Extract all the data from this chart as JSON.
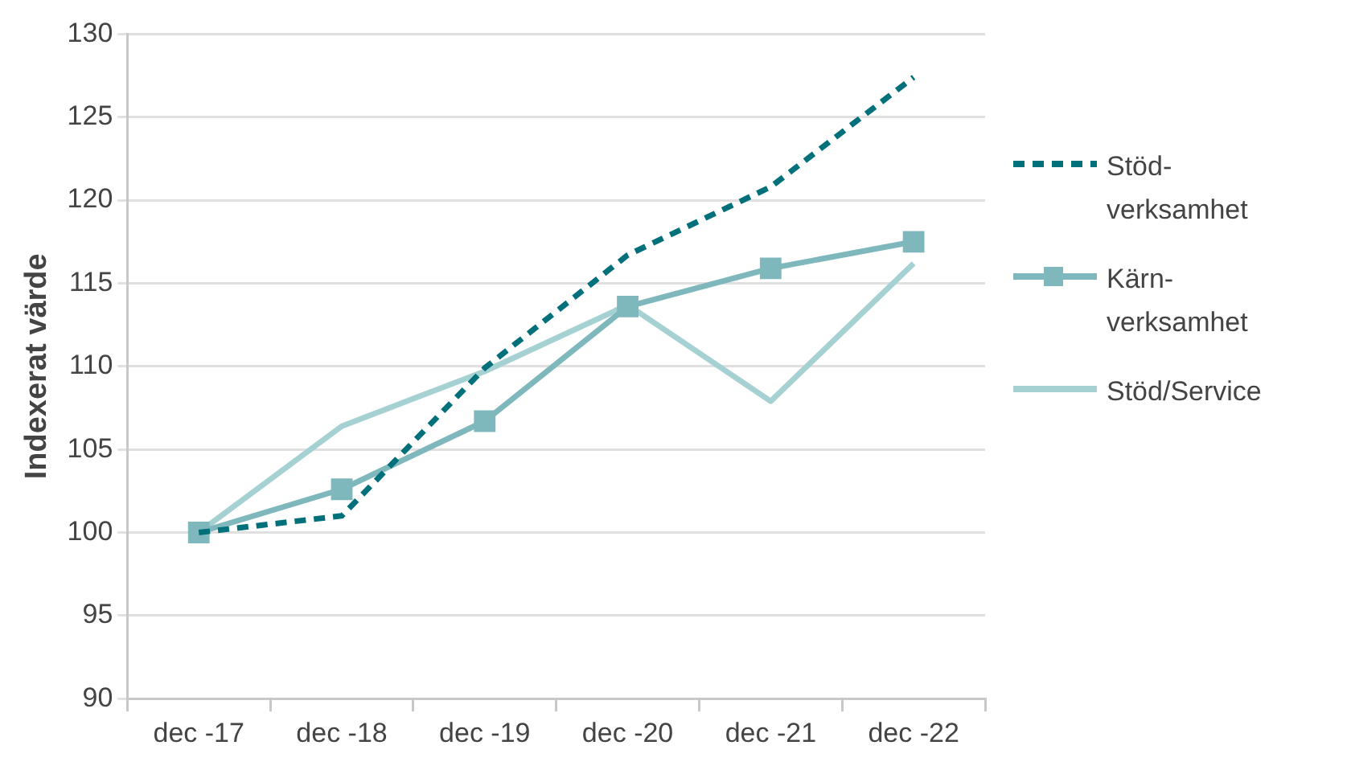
{
  "chart_data": {
    "type": "line",
    "ylabel": "Indexerat värde",
    "categories": [
      "dec -17",
      "dec -18",
      "dec -19",
      "dec -20",
      "dec -21",
      "dec -22"
    ],
    "series": [
      {
        "name": "Stöd-verksamhet",
        "color": "#00707a",
        "line_style": "dashed",
        "marker": "none",
        "values": [
          100,
          101.0,
          109.9,
          116.7,
          120.8,
          127.4
        ]
      },
      {
        "name": "Kärn-verksamhet",
        "color": "#7fb8bc",
        "line_style": "solid",
        "marker": "square",
        "values": [
          100,
          102.6,
          106.7,
          113.6,
          115.9,
          117.5
        ]
      },
      {
        "name": "Stöd/Service",
        "color": "#a6d1d3",
        "line_style": "solid",
        "marker": "none",
        "values": [
          100,
          106.4,
          109.7,
          113.7,
          107.9,
          116.2
        ]
      }
    ],
    "ylim": [
      90,
      130
    ],
    "yticks": [
      90,
      95,
      100,
      105,
      110,
      115,
      120,
      125,
      130
    ],
    "grid": "y",
    "legend": "right"
  }
}
